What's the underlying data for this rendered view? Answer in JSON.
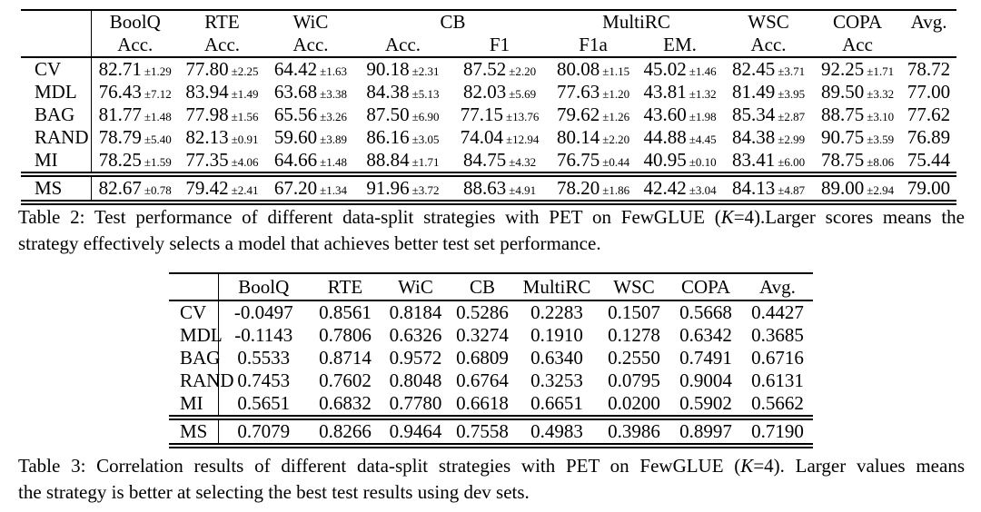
{
  "table2": {
    "groups": [
      "BoolQ",
      "RTE",
      "WiC",
      "CB",
      "MultiRC",
      "WSC",
      "COPA",
      "Avg."
    ],
    "subheaders": [
      "Acc.",
      "Acc.",
      "Acc.",
      "Acc.",
      "F1",
      "F1a",
      "EM.",
      "Acc.",
      "Acc",
      ""
    ],
    "rows": [
      {
        "label": "CV",
        "values": [
          "82.71",
          "77.80",
          "64.42",
          "90.18",
          "87.52",
          "80.08",
          "45.02",
          "82.45",
          "92.25"
        ],
        "errors": [
          "±1.29",
          "±2.25",
          "±1.63",
          "±2.31",
          "±2.20",
          "±1.15",
          "±1.46",
          "±3.71",
          "±1.71"
        ],
        "avg": "78.72"
      },
      {
        "label": "MDL",
        "values": [
          "76.43",
          "83.94",
          "63.68",
          "84.38",
          "82.03",
          "77.63",
          "43.81",
          "81.49",
          "89.50"
        ],
        "errors": [
          "±7.12",
          "±1.49",
          "±3.38",
          "±5.13",
          "±5.69",
          "±1.20",
          "±1.32",
          "±3.95",
          "±3.32"
        ],
        "avg": "77.00"
      },
      {
        "label": "BAG",
        "values": [
          "81.77",
          "77.98",
          "65.56",
          "87.50",
          "77.15",
          "79.62",
          "43.60",
          "85.34",
          "88.75"
        ],
        "errors": [
          "±1.48",
          "±1.56",
          "±3.26",
          "±6.90",
          "±13.76",
          "±1.26",
          "±1.98",
          "±2.87",
          "±3.10"
        ],
        "avg": "77.62"
      },
      {
        "label": "RAND",
        "values": [
          "78.79",
          "82.13",
          "59.60",
          "86.16",
          "74.04",
          "80.14",
          "44.88",
          "84.38",
          "90.75"
        ],
        "errors": [
          "±5.40",
          "±0.91",
          "±3.89",
          "±3.05",
          "±12.94",
          "±2.20",
          "±4.45",
          "±2.99",
          "±3.59"
        ],
        "avg": "76.89"
      },
      {
        "label": "MI",
        "values": [
          "78.25",
          "77.35",
          "64.66",
          "88.84",
          "84.75",
          "76.75",
          "40.95",
          "83.41",
          "78.75"
        ],
        "errors": [
          "±1.59",
          "±4.06",
          "±1.48",
          "±1.71",
          "±4.32",
          "±0.44",
          "±0.10",
          "±6.00",
          "±8.06"
        ],
        "avg": "75.44"
      }
    ],
    "footer": {
      "label": "MS",
      "values": [
        "82.67",
        "79.42",
        "67.20",
        "91.96",
        "88.63",
        "78.20",
        "42.42",
        "84.13",
        "89.00"
      ],
      "errors": [
        "±0.78",
        "±2.41",
        "±1.34",
        "±3.72",
        "±4.91",
        "±1.86",
        "±3.04",
        "±4.87",
        "±2.94"
      ],
      "avg": "79.00"
    },
    "caption": {
      "line1_pre": "Table 2: Test performance of different data-split strategies with PET on FewGLUE (",
      "k": "K",
      "line1_post": "=4).Larger scores means the",
      "line2": "strategy effectively selects a model that achieves better test set performance."
    }
  },
  "table3": {
    "headers": [
      "BoolQ",
      "RTE",
      "WiC",
      "CB",
      "MultiRC",
      "WSC",
      "COPA",
      "Avg."
    ],
    "rows": [
      {
        "label": "CV",
        "values": [
          "-0.0497",
          "0.8561",
          "0.8184",
          "0.5286",
          "0.2283",
          "0.1507",
          "0.5668",
          "0.4427"
        ]
      },
      {
        "label": "MDL",
        "values": [
          "-0.1143",
          "0.7806",
          "0.6326",
          "0.3274",
          "0.1910",
          "0.1278",
          "0.6342",
          "0.3685"
        ]
      },
      {
        "label": "BAG",
        "values": [
          "0.5533",
          "0.8714",
          "0.9572",
          "0.6809",
          "0.6340",
          "0.2550",
          "0.7491",
          "0.6716"
        ]
      },
      {
        "label": "RAND",
        "values": [
          "0.7453",
          "0.7602",
          "0.8048",
          "0.6764",
          "0.3253",
          "0.0795",
          "0.9004",
          "0.6131"
        ]
      },
      {
        "label": "MI",
        "values": [
          "0.5651",
          "0.6832",
          "0.7780",
          "0.6618",
          "0.6651",
          "0.0200",
          "0.5902",
          "0.5662"
        ]
      }
    ],
    "footer": {
      "label": "MS",
      "values": [
        "0.7079",
        "0.8266",
        "0.9464",
        "0.7558",
        "0.4983",
        "0.3986",
        "0.8997",
        "0.7190"
      ]
    },
    "caption": {
      "line1_pre": "Table 3: Correlation results of different data-split strategies with PET on FewGLUE (",
      "k": "K",
      "line1_post": "=4). Larger values means",
      "line2": "the strategy is better at selecting the best test results using dev sets."
    }
  }
}
